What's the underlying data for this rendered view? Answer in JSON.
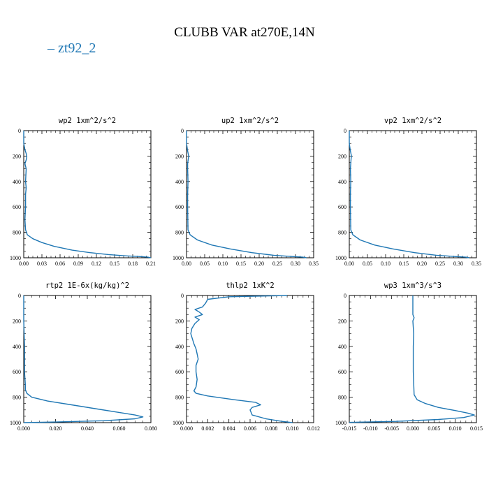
{
  "title": "CLUBB VAR at270E,14N",
  "legend": {
    "label": "– zt92_2",
    "color": "#1f77b4"
  },
  "chart_data": [
    {
      "type": "line",
      "title": "wp2  1xm^2/s^2",
      "xlim": [
        0,
        0.21
      ],
      "ylim": [
        1000,
        0
      ],
      "xticks": [
        "0.00",
        "0.03",
        "0.06",
        "0.09",
        "0.12",
        "0.15",
        "0.18",
        "0.21"
      ],
      "yticks": [
        "0",
        "200",
        "400",
        "600",
        "800",
        "1000"
      ],
      "series": [
        {
          "x": [
            0.0,
            0.0,
            0.002,
            0.004,
            0.005,
            0.004,
            0.002,
            0.004,
            0.003,
            0.004,
            0.003,
            0.003,
            0.002,
            0.003,
            0.006,
            0.015,
            0.03,
            0.05,
            0.08,
            0.11,
            0.14,
            0.17,
            0.19,
            0.205,
            0.21
          ],
          "y": [
            0,
            100,
            150,
            180,
            210,
            230,
            260,
            300,
            400,
            450,
            500,
            600,
            700,
            780,
            820,
            850,
            880,
            910,
            940,
            960,
            975,
            985,
            990,
            995,
            1000
          ]
        }
      ]
    },
    {
      "type": "line",
      "title": "up2  1xm^2/s^2",
      "xlim": [
        0,
        0.35
      ],
      "ylim": [
        1000,
        0
      ],
      "xticks": [
        "0.00",
        "0.05",
        "0.10",
        "0.15",
        "0.20",
        "0.25",
        "0.30",
        "0.35"
      ],
      "yticks": [
        "0",
        "200",
        "400",
        "600",
        "800",
        "1000"
      ],
      "series": [
        {
          "x": [
            0.0,
            0.0,
            0.003,
            0.006,
            0.005,
            0.003,
            0.003,
            0.004,
            0.003,
            0.003,
            0.004,
            0.01,
            0.03,
            0.07,
            0.12,
            0.18,
            0.24,
            0.29,
            0.32,
            0.33
          ],
          "y": [
            0,
            100,
            160,
            200,
            220,
            260,
            300,
            400,
            500,
            600,
            780,
            820,
            860,
            900,
            930,
            960,
            980,
            990,
            995,
            1000
          ]
        }
      ]
    },
    {
      "type": "line",
      "title": "vp2  1xm^2/s^2",
      "xlim": [
        0,
        0.35
      ],
      "ylim": [
        1000,
        0
      ],
      "xticks": [
        "0.00",
        "0.05",
        "0.10",
        "0.15",
        "0.20",
        "0.25",
        "0.30",
        "0.35"
      ],
      "yticks": [
        "0",
        "200",
        "400",
        "600",
        "800",
        "1000"
      ],
      "series": [
        {
          "x": [
            0.0,
            0.0,
            0.003,
            0.006,
            0.005,
            0.004,
            0.003,
            0.004,
            0.003,
            0.003,
            0.004,
            0.01,
            0.03,
            0.07,
            0.12,
            0.18,
            0.24,
            0.29,
            0.32,
            0.33
          ],
          "y": [
            0,
            100,
            160,
            200,
            220,
            260,
            300,
            400,
            500,
            600,
            780,
            820,
            860,
            900,
            930,
            960,
            980,
            990,
            995,
            1000
          ]
        }
      ]
    },
    {
      "type": "line",
      "title": "rtp2  1E-6x(kg/kg)^2",
      "xlim": [
        0,
        0.08
      ],
      "ylim": [
        1000,
        0
      ],
      "xticks": [
        "0.000",
        "0.020",
        "0.040",
        "0.060",
        "0.080"
      ],
      "yticks": [
        "0",
        "200",
        "400",
        "600",
        "800",
        "1000"
      ],
      "series": [
        {
          "x": [
            0.0,
            0.0,
            0.0005,
            0.0005,
            0.001,
            0.001,
            0.002,
            0.005,
            0.015,
            0.03,
            0.045,
            0.06,
            0.07,
            0.075,
            0.07,
            0.05,
            0.02,
            0.0
          ],
          "y": [
            0,
            200,
            400,
            600,
            700,
            740,
            770,
            800,
            830,
            860,
            890,
            920,
            940,
            955,
            970,
            985,
            995,
            1000
          ]
        }
      ]
    },
    {
      "type": "line",
      "title": "thlp2  1xK^2",
      "xlim": [
        0,
        0.012
      ],
      "ylim": [
        1000,
        0
      ],
      "xticks": [
        "0.000",
        "0.002",
        "0.004",
        "0.006",
        "0.008",
        "0.010",
        "0.012"
      ],
      "yticks": [
        "0",
        "200",
        "400",
        "600",
        "800",
        "1000"
      ],
      "series": [
        {
          "x": [
            0.0095,
            0.004,
            0.002,
            0.0018,
            0.0015,
            0.0008,
            0.0012,
            0.0015,
            0.0008,
            0.0012,
            0.0008,
            0.0005,
            0.0004,
            0.0007,
            0.0009,
            0.001,
            0.0011,
            0.0009,
            0.0009,
            0.001,
            0.0009,
            0.0007,
            0.0009,
            0.002,
            0.0045,
            0.0065,
            0.007,
            0.0062,
            0.006,
            0.0062,
            0.0075,
            0.009,
            0.01
          ],
          "y": [
            0,
            10,
            30,
            60,
            90,
            110,
            130,
            150,
            170,
            190,
            220,
            260,
            300,
            380,
            420,
            460,
            500,
            550,
            600,
            660,
            720,
            750,
            770,
            790,
            820,
            840,
            860,
            880,
            900,
            940,
            970,
            990,
            1000
          ]
        }
      ]
    },
    {
      "type": "line",
      "title": "wp3  1xm^3/s^3",
      "xlim": [
        -0.015,
        0.015
      ],
      "ylim": [
        1000,
        0
      ],
      "xticks": [
        "-0.015",
        "-0.010",
        "-0.005",
        "0.000",
        "0.005",
        "0.010",
        "0.015"
      ],
      "yticks": [
        "0",
        "200",
        "400",
        "600",
        "800",
        "1000"
      ],
      "series": [
        {
          "x": [
            0.0,
            0.0,
            0.0003,
            0.0,
            0.0002,
            0.0001,
            0.0001,
            0.0003,
            0.001,
            0.003,
            0.006,
            0.01,
            0.013,
            0.0145,
            0.012,
            0.006,
            -0.004,
            -0.015
          ],
          "y": [
            0,
            150,
            175,
            200,
            300,
            400,
            600,
            780,
            820,
            850,
            880,
            905,
            925,
            940,
            960,
            975,
            990,
            998
          ]
        }
      ]
    }
  ]
}
